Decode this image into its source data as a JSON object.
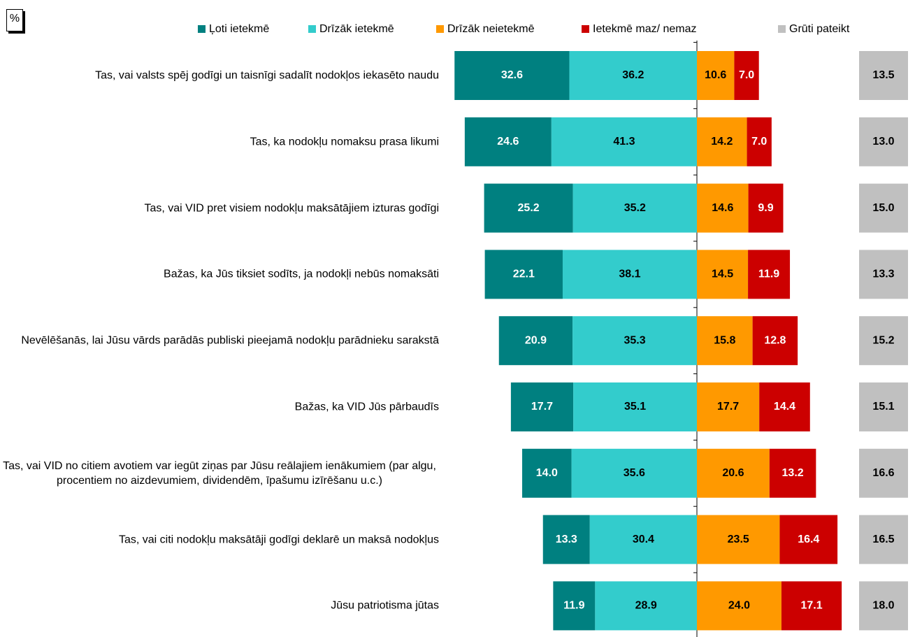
{
  "chart_data": {
    "type": "diverging_bar",
    "unit_label": "%",
    "categories": [
      "Tas, vai valsts spēj godīgi un taisnīgi sadalīt nodokļos iekasēto naudu",
      "Tas, ka nodokļu nomaksu prasa likumi",
      "Tas, vai VID pret visiem nodokļu maksātājiem izturas godīgi",
      "Bažas, ka Jūs tiksiet sodīts, ja nodokļi nebūs nomaksāti",
      "Nevēlēšanās, lai Jūsu vārds parādās publiski pieejamā nodokļu parādnieku sarakstā",
      "Bažas, ka VID Jūs pārbaudīs",
      "Tas, vai VID no citiem avotiem var iegūt ziņas par Jūsu reālajiem ienākumiem (par algu, procentiem no aizdevumiem, dividendēm, īpašumu izīrēšanu u.c.)",
      "Tas, vai citi nodokļu maksātāji godīgi deklarē un maksā nodokļus",
      "Jūsu patriotisma jūtas"
    ],
    "series": [
      {
        "name": "Ļoti ietekmē",
        "color": "#008080",
        "values": [
          32.6,
          24.6,
          25.2,
          22.1,
          20.9,
          17.7,
          14.0,
          13.3,
          11.9
        ],
        "value_labels": [
          "32.6",
          "24.6",
          "25.2",
          "22.1",
          "20.9",
          "17.7",
          "14.0",
          "13.3",
          "11.9"
        ]
      },
      {
        "name": "Drīzāk ietekmē",
        "color": "#33CCCC",
        "values": [
          36.2,
          41.3,
          35.2,
          38.1,
          35.3,
          35.1,
          35.6,
          30.4,
          28.9
        ],
        "value_labels": [
          "36.2",
          "41.3",
          "35.2",
          "38.1",
          "35.3",
          "35.1",
          "35.6",
          "30.4",
          "28.9"
        ]
      },
      {
        "name": "Drīzāk neietekmē",
        "color": "#FF9900",
        "values": [
          10.6,
          14.2,
          14.6,
          14.5,
          15.8,
          17.7,
          20.6,
          23.5,
          24.0
        ],
        "value_labels": [
          "10.6",
          "14.2",
          "14.6",
          "14.5",
          "15.8",
          "17.7",
          "20.6",
          "23.5",
          "24.0"
        ]
      },
      {
        "name": "Ietekmē maz/ nemaz",
        "color": "#CC0000",
        "values": [
          7.0,
          7.0,
          9.9,
          11.9,
          12.8,
          14.4,
          13.2,
          16.4,
          17.1
        ],
        "value_labels": [
          "7.0",
          "7.0",
          "9.9",
          "11.9",
          "12.8",
          "14.4",
          "13.2",
          "16.4",
          "17.1"
        ]
      },
      {
        "name": "Grūti pateikt",
        "color": "#C0C0C0",
        "values": [
          13.5,
          13.0,
          15.0,
          13.3,
          15.2,
          15.1,
          16.6,
          16.5,
          18.0
        ],
        "value_labels": [
          "13.5",
          "13.0",
          "15.0",
          "13.3",
          "15.2",
          "15.1",
          "16.6",
          "16.5",
          "18.0"
        ]
      }
    ]
  }
}
